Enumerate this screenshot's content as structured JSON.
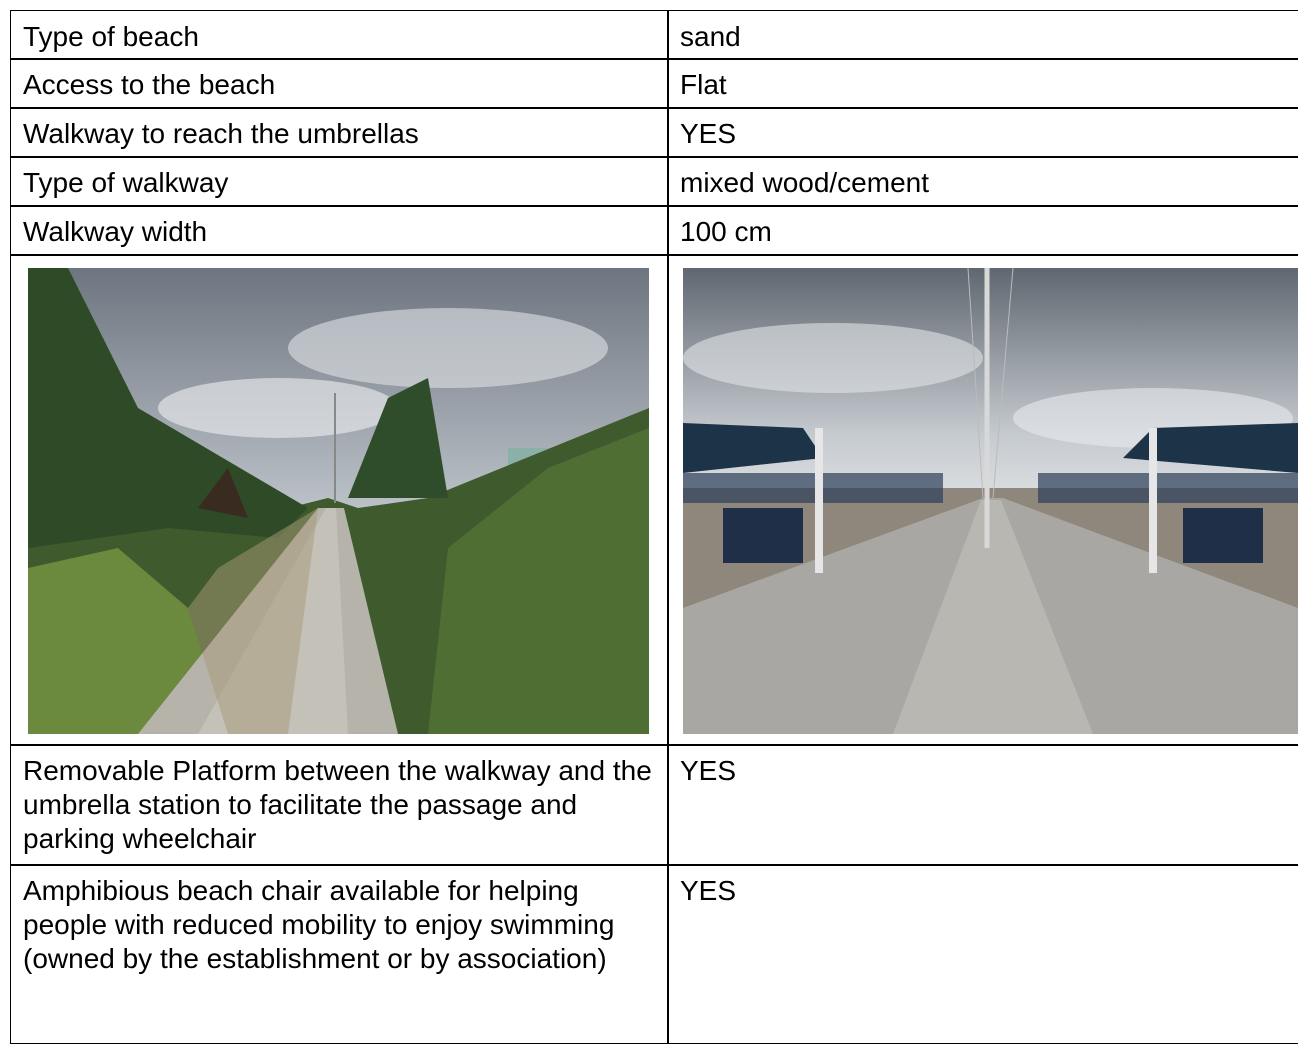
{
  "table": {
    "rows": [
      [
        "Type of beach",
        "sand"
      ],
      [
        "Access to the beach",
        "Flat"
      ],
      [
        "Walkway to reach the umbrellas",
        "YES"
      ],
      [
        "Type of walkway",
        "mixed wood/cement"
      ],
      [
        "Walkway width",
        "100 cm"
      ],
      [
        "Removable Platform between the walkway and the umbrella station to facilitate the passage and parking wheelchair",
        "YES"
      ],
      [
        "Amphibious beach chair available for helping people with reduced mobility to enjoy swimming (owned by the establishment or by association)",
        "YES"
      ]
    ]
  }
}
